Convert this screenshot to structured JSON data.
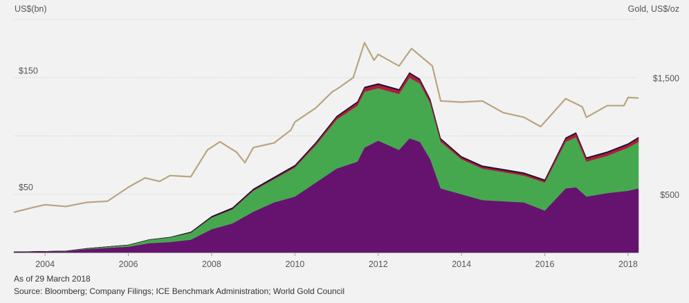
{
  "chart_data": {
    "type": "area",
    "stacked": true,
    "title": "",
    "left_axis": {
      "label": "US$(bn)",
      "ticks": [
        {
          "value": 50,
          "label": "$50"
        },
        {
          "value": 150,
          "label": "$150"
        }
      ],
      "range": [
        0,
        200
      ]
    },
    "right_axis": {
      "label": "Gold, US$/oz",
      "ticks": [
        {
          "value": 500,
          "label": "$500"
        },
        {
          "value": 1500,
          "label": "$1,500"
        }
      ],
      "range": [
        0,
        2000
      ]
    },
    "x_axis": {
      "ticks": [
        "2004",
        "2006",
        "2008",
        "2010",
        "2012",
        "2014",
        "2016",
        "2018"
      ],
      "range": [
        2003.25,
        2018.25
      ]
    },
    "grid": "horizontal-dotted",
    "x": [
      2003.25,
      2004.0,
      2004.5,
      2005.0,
      2005.5,
      2006.0,
      2006.5,
      2007.0,
      2007.5,
      2008.0,
      2008.5,
      2009.0,
      2009.5,
      2010.0,
      2010.5,
      2011.0,
      2011.5,
      2011.67,
      2012.0,
      2012.5,
      2012.75,
      2013.0,
      2013.25,
      2013.5,
      2014.0,
      2014.5,
      2015.0,
      2015.5,
      2016.0,
      2016.5,
      2016.75,
      2017.0,
      2017.5,
      2018.0,
      2018.25
    ],
    "series": [
      {
        "name": "",
        "color": "#66136f",
        "values": [
          0.5,
          0.8,
          1,
          3,
          4,
          5,
          8,
          9,
          11,
          20,
          25,
          35,
          43,
          48,
          60,
          72,
          78,
          90,
          96,
          88,
          98,
          95,
          80,
          55,
          50,
          45,
          44,
          43,
          36,
          55,
          56,
          48,
          51,
          53,
          55
        ]
      },
      {
        "name": "",
        "color": "#45a84f",
        "values": [
          0,
          0.2,
          0.3,
          0.5,
          1,
          1.5,
          3,
          4,
          6,
          10,
          12,
          18,
          20,
          25,
          32,
          42,
          48,
          48,
          45,
          48,
          52,
          50,
          48,
          40,
          30,
          27,
          25,
          23,
          24,
          40,
          43,
          30,
          32,
          37,
          40
        ]
      },
      {
        "name": "",
        "color": "#b01c3c",
        "values": [
          0,
          0,
          0,
          0,
          0,
          0,
          0,
          0,
          0.2,
          0.3,
          0.5,
          0.6,
          0.8,
          1,
          1.5,
          2,
          2.5,
          3,
          3,
          3,
          3.5,
          3,
          2.5,
          2,
          1.5,
          1.5,
          1.5,
          1.5,
          1.5,
          2.5,
          3,
          2.5,
          2.5,
          2.5,
          3
        ]
      },
      {
        "name": "",
        "color": "#1e1033",
        "values": [
          0,
          0,
          0,
          0,
          0,
          0,
          0.1,
          0.2,
          0.5,
          0.8,
          1,
          1,
          1,
          1,
          1,
          1,
          1,
          1,
          1,
          1,
          1,
          1,
          1,
          1,
          1,
          1,
          1,
          1,
          1,
          1,
          1,
          1,
          1,
          1,
          1
        ]
      }
    ],
    "gold_line": {
      "name": "",
      "axis": "right",
      "color": "#b8a47e",
      "x": [
        2003.25,
        2003.75,
        2004.0,
        2004.5,
        2005.0,
        2005.5,
        2006.0,
        2006.4,
        2006.75,
        2007.0,
        2007.5,
        2007.9,
        2008.2,
        2008.6,
        2008.8,
        2009.0,
        2009.5,
        2009.9,
        2010.0,
        2010.5,
        2010.9,
        2011.0,
        2011.4,
        2011.67,
        2011.9,
        2012.0,
        2012.3,
        2012.5,
        2012.8,
        2013.0,
        2013.3,
        2013.5,
        2014.0,
        2014.5,
        2015.0,
        2015.5,
        2015.9,
        2016.0,
        2016.5,
        2016.9,
        2017.0,
        2017.5,
        2017.9,
        2018.0,
        2018.25
      ],
      "values": [
        345,
        390,
        410,
        395,
        430,
        440,
        560,
        640,
        610,
        660,
        650,
        880,
        950,
        860,
        770,
        900,
        940,
        1050,
        1120,
        1240,
        1380,
        1400,
        1500,
        1800,
        1650,
        1700,
        1640,
        1600,
        1750,
        1690,
        1600,
        1300,
        1290,
        1300,
        1200,
        1160,
        1080,
        1120,
        1320,
        1250,
        1160,
        1260,
        1260,
        1330,
        1325
      ]
    }
  },
  "footer": {
    "as_of": "As of 29 March 2018",
    "source": "Source: Bloomberg; Company Filings; ICE Benchmark Administration; World Gold Council"
  }
}
